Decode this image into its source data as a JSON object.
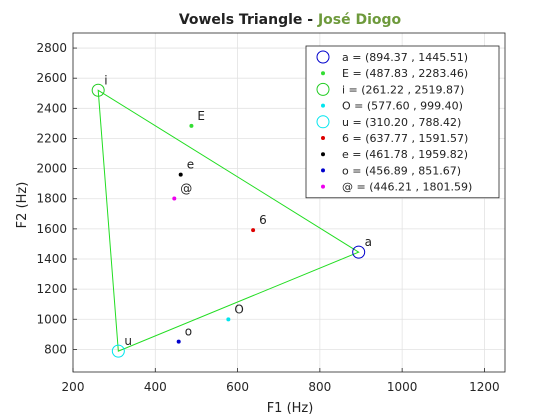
{
  "chart_data": {
    "type": "scatter",
    "title": "Vowels Triangle",
    "title_separator": " - ",
    "title_author": "José Diogo",
    "title_author_color": "#6e9a3c",
    "xlabel": "F1 (Hz)",
    "ylabel": "F2 (Hz)",
    "xlim": [
      200,
      1250
    ],
    "ylim": [
      650,
      2900
    ],
    "xticks": [
      200,
      400,
      600,
      800,
      1000,
      1200
    ],
    "yticks": [
      800,
      1000,
      1200,
      1400,
      1600,
      1800,
      2000,
      2200,
      2400,
      2600,
      2800
    ],
    "grid": true,
    "legend_position": "top-right",
    "triangle_color": "#22dd22",
    "triangle": [
      "i",
      "a",
      "u"
    ],
    "points": [
      {
        "label": "a",
        "legend": "a  = (894.37 , 1445.51)",
        "x": 894.37,
        "y": 1445.51,
        "color": "#0000cc",
        "marker": "circle"
      },
      {
        "label": "E",
        "legend": "E  = (487.83 , 2283.46)",
        "x": 487.83,
        "y": 2283.46,
        "color": "#33dd33",
        "marker": "dot"
      },
      {
        "label": "i",
        "legend": "i   = (261.22 , 2519.87)",
        "x": 261.22,
        "y": 2519.87,
        "color": "#22cc22",
        "marker": "circle"
      },
      {
        "label": "O",
        "legend": "O  = (577.60 , 999.40)",
        "x": 577.6,
        "y": 999.4,
        "color": "#00e5ee",
        "marker": "dot"
      },
      {
        "label": "u",
        "legend": "u  = (310.20 , 788.42)",
        "x": 310.2,
        "y": 788.42,
        "color": "#00e5ee",
        "marker": "circle"
      },
      {
        "label": "6",
        "legend": "6  = (637.77 , 1591.57)",
        "x": 637.77,
        "y": 1591.57,
        "color": "#dd0000",
        "marker": "dot"
      },
      {
        "label": "e",
        "legend": "e  = (461.78 , 1959.82)",
        "x": 461.78,
        "y": 1959.82,
        "color": "#000000",
        "marker": "dot"
      },
      {
        "label": "o",
        "legend": "o  = (456.89 , 851.67)",
        "x": 456.89,
        "y": 851.67,
        "color": "#0000cc",
        "marker": "dot"
      },
      {
        "label": "@",
        "legend": "@ = (446.21 , 1801.59)",
        "x": 446.21,
        "y": 1801.59,
        "color": "#ee00ee",
        "marker": "dot"
      }
    ]
  }
}
